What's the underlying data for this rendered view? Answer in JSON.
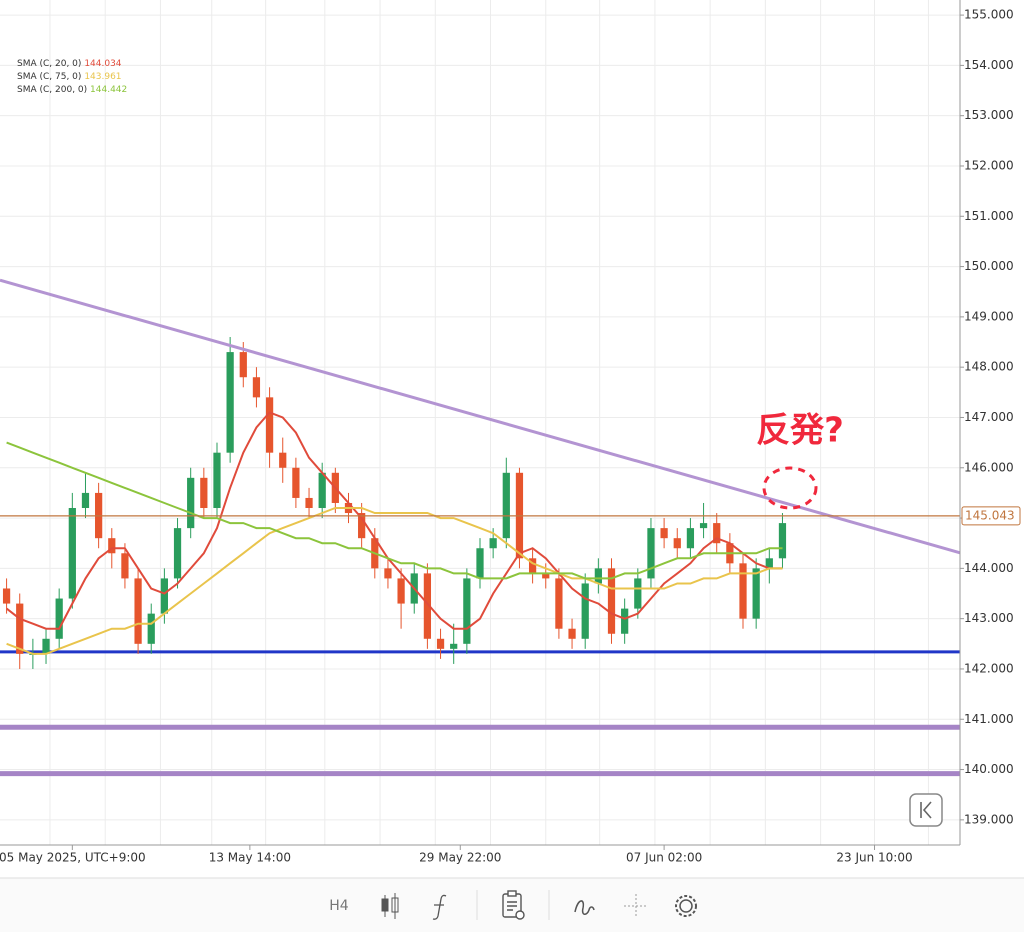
{
  "chart_data": {
    "type": "candlestick",
    "xlim": [
      -0.5,
      72.5
    ],
    "ylim": [
      138.5,
      155.3
    ],
    "yticks": [
      {
        "value": 139,
        "label": "139.000"
      },
      {
        "value": 140,
        "label": "140.000"
      },
      {
        "value": 141,
        "label": "141.000"
      },
      {
        "value": 142,
        "label": "142.000"
      },
      {
        "value": 143,
        "label": "143.000"
      },
      {
        "value": 144,
        "label": "144.000"
      },
      {
        "value": 145,
        "label": "145.000"
      },
      {
        "value": 146,
        "label": "146.000"
      },
      {
        "value": 147,
        "label": "147.000"
      },
      {
        "value": 148,
        "label": "148.000"
      },
      {
        "value": 149,
        "label": "149.000"
      },
      {
        "value": 150,
        "label": "150.000"
      },
      {
        "value": 151,
        "label": "151.000"
      },
      {
        "value": 152,
        "label": "152.000"
      },
      {
        "value": 153,
        "label": "153.000"
      },
      {
        "value": 154,
        "label": "154.000"
      },
      {
        "value": 155,
        "label": "155.000"
      }
    ],
    "xticks": [
      {
        "value": 5,
        "label": "05 May 2025, UTC+9:00"
      },
      {
        "value": 18.5,
        "label": "13 May 14:00"
      },
      {
        "value": 34.5,
        "label": "29 May 22:00"
      },
      {
        "value": 50,
        "label": "07 Jun 02:00"
      },
      {
        "value": 66,
        "label": "23 Jun 10:00"
      }
    ],
    "xgrid": [
      3.3,
      7.5,
      11.7,
      15.6,
      19.7,
      24.2,
      28.4,
      32.6,
      36.8,
      41,
      45.1,
      49.3,
      53.5,
      57.7,
      61.9,
      66,
      70.1
    ],
    "up_color": "#2a9d5c",
    "down_color": "#e6552d",
    "candles": [
      [
        143.6,
        143.8,
        143.1,
        143.3
      ],
      [
        143.3,
        143.5,
        142.0,
        142.3
      ],
      [
        142.3,
        142.6,
        142.0,
        142.3
      ],
      [
        142.3,
        142.8,
        142.1,
        142.6
      ],
      [
        142.6,
        143.6,
        142.4,
        143.4
      ],
      [
        143.4,
        145.5,
        143.2,
        145.2
      ],
      [
        145.2,
        145.9,
        145.0,
        145.5
      ],
      [
        145.5,
        145.7,
        144.4,
        144.6
      ],
      [
        144.6,
        144.8,
        144.0,
        144.3
      ],
      [
        144.3,
        144.5,
        143.6,
        143.8
      ],
      [
        143.8,
        144.0,
        142.3,
        142.5
      ],
      [
        142.5,
        143.3,
        142.3,
        143.1
      ],
      [
        143.1,
        144.0,
        142.9,
        143.8
      ],
      [
        143.8,
        145.0,
        143.6,
        144.8
      ],
      [
        144.8,
        146.0,
        144.6,
        145.8
      ],
      [
        145.8,
        146.0,
        145.0,
        145.2
      ],
      [
        145.2,
        146.5,
        145.0,
        146.3
      ],
      [
        146.3,
        148.6,
        146.1,
        148.3
      ],
      [
        148.3,
        148.5,
        147.6,
        147.8
      ],
      [
        147.8,
        148.0,
        147.2,
        147.4
      ],
      [
        147.4,
        147.6,
        146.0,
        146.3
      ],
      [
        146.3,
        146.6,
        145.7,
        146.0
      ],
      [
        146.0,
        146.2,
        145.2,
        145.4
      ],
      [
        145.4,
        145.6,
        145.0,
        145.2
      ],
      [
        145.2,
        146.1,
        145.0,
        145.9
      ],
      [
        145.9,
        146.0,
        145.1,
        145.3
      ],
      [
        145.3,
        145.5,
        144.9,
        145.1
      ],
      [
        145.1,
        145.3,
        144.4,
        144.6
      ],
      [
        144.6,
        144.8,
        143.8,
        144.0
      ],
      [
        144.0,
        144.2,
        143.6,
        143.8
      ],
      [
        143.8,
        144.0,
        142.8,
        143.3
      ],
      [
        143.3,
        144.1,
        143.1,
        143.9
      ],
      [
        143.9,
        144.1,
        142.4,
        142.6
      ],
      [
        142.6,
        142.8,
        142.2,
        142.4
      ],
      [
        142.4,
        142.9,
        142.1,
        142.5
      ],
      [
        142.5,
        144.0,
        142.3,
        143.8
      ],
      [
        143.8,
        144.6,
        143.6,
        144.4
      ],
      [
        144.4,
        144.8,
        144.2,
        144.6
      ],
      [
        144.6,
        146.2,
        144.4,
        145.9
      ],
      [
        145.9,
        146.0,
        144.0,
        144.2
      ],
      [
        144.2,
        144.4,
        143.7,
        143.9
      ],
      [
        143.9,
        144.1,
        143.6,
        143.8
      ],
      [
        143.8,
        144.0,
        142.6,
        142.8
      ],
      [
        142.8,
        143.0,
        142.4,
        142.6
      ],
      [
        142.6,
        143.9,
        142.4,
        143.7
      ],
      [
        143.7,
        144.2,
        143.5,
        144.0
      ],
      [
        144.0,
        144.2,
        142.5,
        142.7
      ],
      [
        142.7,
        143.4,
        142.5,
        143.2
      ],
      [
        143.2,
        144.0,
        143.0,
        143.8
      ],
      [
        143.8,
        145.0,
        143.6,
        144.8
      ],
      [
        144.8,
        145.0,
        144.4,
        144.6
      ],
      [
        144.6,
        144.8,
        144.2,
        144.4
      ],
      [
        144.4,
        145.0,
        144.2,
        144.8
      ],
      [
        144.8,
        145.3,
        144.6,
        144.9
      ],
      [
        144.9,
        145.1,
        144.3,
        144.5
      ],
      [
        144.5,
        144.7,
        143.9,
        144.1
      ],
      [
        144.1,
        144.3,
        142.8,
        143.0
      ],
      [
        143.0,
        144.2,
        142.8,
        144.0
      ],
      [
        144.0,
        144.4,
        143.7,
        144.2
      ],
      [
        144.2,
        145.1,
        144.0,
        144.9
      ]
    ],
    "indicators": [
      {
        "name": "SMA (C, 20, 0)",
        "last": 144.034,
        "color": "#e04b3b",
        "values": [
          143.2,
          143.0,
          142.9,
          142.8,
          142.8,
          143.3,
          143.8,
          144.2,
          144.4,
          144.4,
          144.0,
          143.6,
          143.5,
          143.7,
          144.0,
          144.3,
          144.8,
          145.6,
          146.3,
          146.8,
          147.1,
          147.0,
          146.7,
          146.2,
          145.9,
          145.6,
          145.3,
          145.0,
          144.6,
          144.2,
          143.9,
          143.6,
          143.3,
          143.0,
          142.8,
          142.8,
          143.0,
          143.5,
          143.9,
          144.3,
          144.4,
          144.2,
          143.9,
          143.6,
          143.4,
          143.3,
          143.1,
          143.0,
          143.1,
          143.4,
          143.7,
          143.9,
          144.1,
          144.4,
          144.6,
          144.5,
          144.3,
          144.1,
          144.0,
          144.0
        ]
      },
      {
        "name": "SMA (C, 75, 0)",
        "last": 143.961,
        "color": "#e9c44c",
        "values": [
          142.5,
          142.4,
          142.3,
          142.3,
          142.4,
          142.5,
          142.6,
          142.7,
          142.8,
          142.8,
          142.9,
          142.9,
          143.1,
          143.3,
          143.5,
          143.7,
          143.9,
          144.1,
          144.3,
          144.5,
          144.7,
          144.8,
          144.9,
          145.0,
          145.1,
          145.2,
          145.2,
          145.2,
          145.1,
          145.1,
          145.1,
          145.1,
          145.1,
          145.0,
          145.0,
          144.9,
          144.8,
          144.7,
          144.5,
          144.3,
          144.1,
          144.0,
          143.9,
          143.8,
          143.8,
          143.7,
          143.6,
          143.6,
          143.6,
          143.6,
          143.6,
          143.7,
          143.7,
          143.8,
          143.8,
          143.9,
          143.9,
          143.9,
          144.0,
          144.0
        ]
      },
      {
        "name": "SMA (C, 200, 0)",
        "last": 144.442,
        "color": "#8cc43c",
        "values": [
          146.5,
          146.4,
          146.3,
          146.2,
          146.1,
          146.0,
          145.9,
          145.8,
          145.7,
          145.6,
          145.5,
          145.4,
          145.3,
          145.2,
          145.1,
          145.0,
          145.0,
          144.9,
          144.9,
          144.8,
          144.8,
          144.7,
          144.6,
          144.6,
          144.5,
          144.5,
          144.4,
          144.4,
          144.3,
          144.2,
          144.1,
          144.1,
          144.0,
          144.0,
          143.9,
          143.9,
          143.8,
          143.8,
          143.8,
          143.9,
          143.9,
          143.9,
          143.9,
          143.9,
          143.8,
          143.8,
          143.8,
          143.9,
          143.9,
          144.0,
          144.1,
          144.2,
          144.2,
          144.3,
          144.3,
          144.3,
          144.3,
          144.3,
          144.4,
          144.4
        ]
      }
    ],
    "current_price": 145.043,
    "current_price_color": "#c0763f",
    "hlines": [
      {
        "value": 142.34,
        "color": "#2036c8",
        "width": 3
      },
      {
        "value": 140.84,
        "color": "#a584c6",
        "width": 5
      },
      {
        "value": 139.92,
        "color": "#a584c6",
        "width": 5
      }
    ],
    "trendline": {
      "x": [
        -0.5,
        72.5
      ],
      "y": [
        149.73,
        144.31
      ],
      "color": "#b394d2",
      "width": 3
    },
    "annotation": "反発?",
    "timeframe": "H4"
  }
}
